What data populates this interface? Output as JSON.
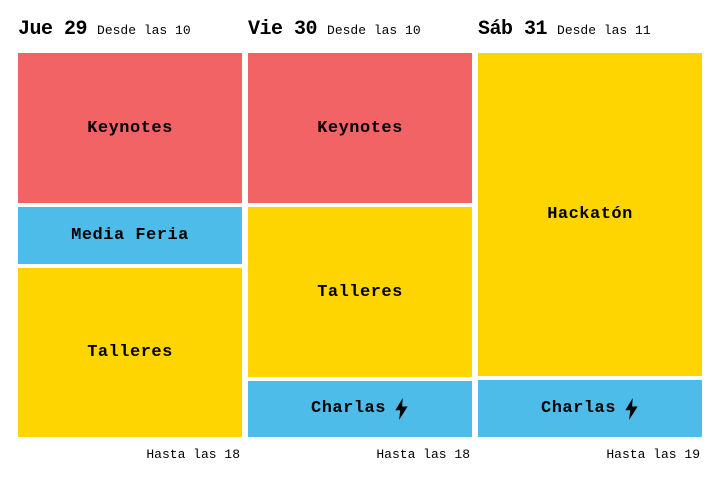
{
  "colors": {
    "keynotes": "#f26366",
    "media_feria": "#4dbce9",
    "talleres": "#ffd500",
    "hackaton": "#ffd500",
    "charlas": "#4dbce9",
    "text": "#000000",
    "background": "#ffffff"
  },
  "days": [
    {
      "name": "Jue 29",
      "start_label": "Desde las 10",
      "end_label": "Hasta las 18",
      "blocks": [
        {
          "label": "Keynotes",
          "color_key": "keynotes",
          "flex": 40,
          "has_bolt": false
        },
        {
          "label": "Media Feria",
          "color_key": "media_feria",
          "flex": 15,
          "has_bolt": false
        },
        {
          "label": "Talleres",
          "color_key": "talleres",
          "flex": 45,
          "has_bolt": false
        }
      ]
    },
    {
      "name": "Vie 30",
      "start_label": "Desde las 10",
      "end_label": "Hasta las 18",
      "blocks": [
        {
          "label": "Keynotes",
          "color_key": "keynotes",
          "flex": 40,
          "has_bolt": false
        },
        {
          "label": "Talleres",
          "color_key": "talleres",
          "flex": 45,
          "has_bolt": false
        },
        {
          "label": "Charlas",
          "color_key": "charlas",
          "flex": 15,
          "has_bolt": true
        }
      ]
    },
    {
      "name": "Sáb 31",
      "start_label": "Desde las 11",
      "end_label": "Hasta las 19",
      "blocks": [
        {
          "label": "Hackatón",
          "color_key": "hackaton",
          "flex": 85,
          "has_bolt": false
        },
        {
          "label": "Charlas",
          "color_key": "charlas",
          "flex": 15,
          "has_bolt": true
        }
      ]
    }
  ]
}
